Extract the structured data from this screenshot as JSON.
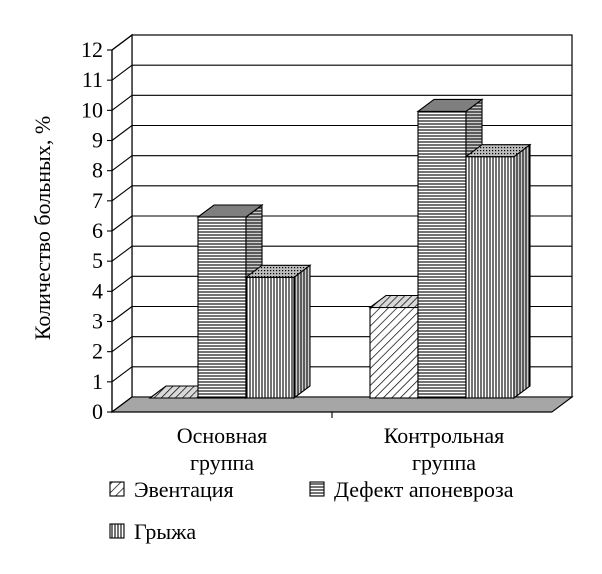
{
  "chart_data": {
    "type": "bar",
    "title": "",
    "xlabel": "",
    "ylabel": "Количество больных, %",
    "ylim": [
      0,
      12
    ],
    "yticks": [
      "0",
      "1",
      "2",
      "3",
      "4",
      "5",
      "6",
      "7",
      "8",
      "9",
      "10",
      "11",
      "12"
    ],
    "categories": [
      "Основная группа",
      "Контрольная группа"
    ],
    "category_lines": [
      [
        "Основная",
        "группа"
      ],
      [
        "Контрольная",
        "группа"
      ]
    ],
    "series": [
      {
        "name": "Эвентация",
        "values": [
          0,
          3
        ],
        "pattern": "diagonal-hatch",
        "color": "#ffffff"
      },
      {
        "name": "Дефект апоневроза",
        "values": [
          6,
          9.5
        ],
        "pattern": "horizontal-lines",
        "color": "#888888"
      },
      {
        "name": "Грыжа",
        "values": [
          4,
          8
        ],
        "pattern": "vertical-lines",
        "color": "#ffffff"
      }
    ],
    "grid": true,
    "legend_position": "bottom",
    "style": "3d-clustered-bar"
  }
}
